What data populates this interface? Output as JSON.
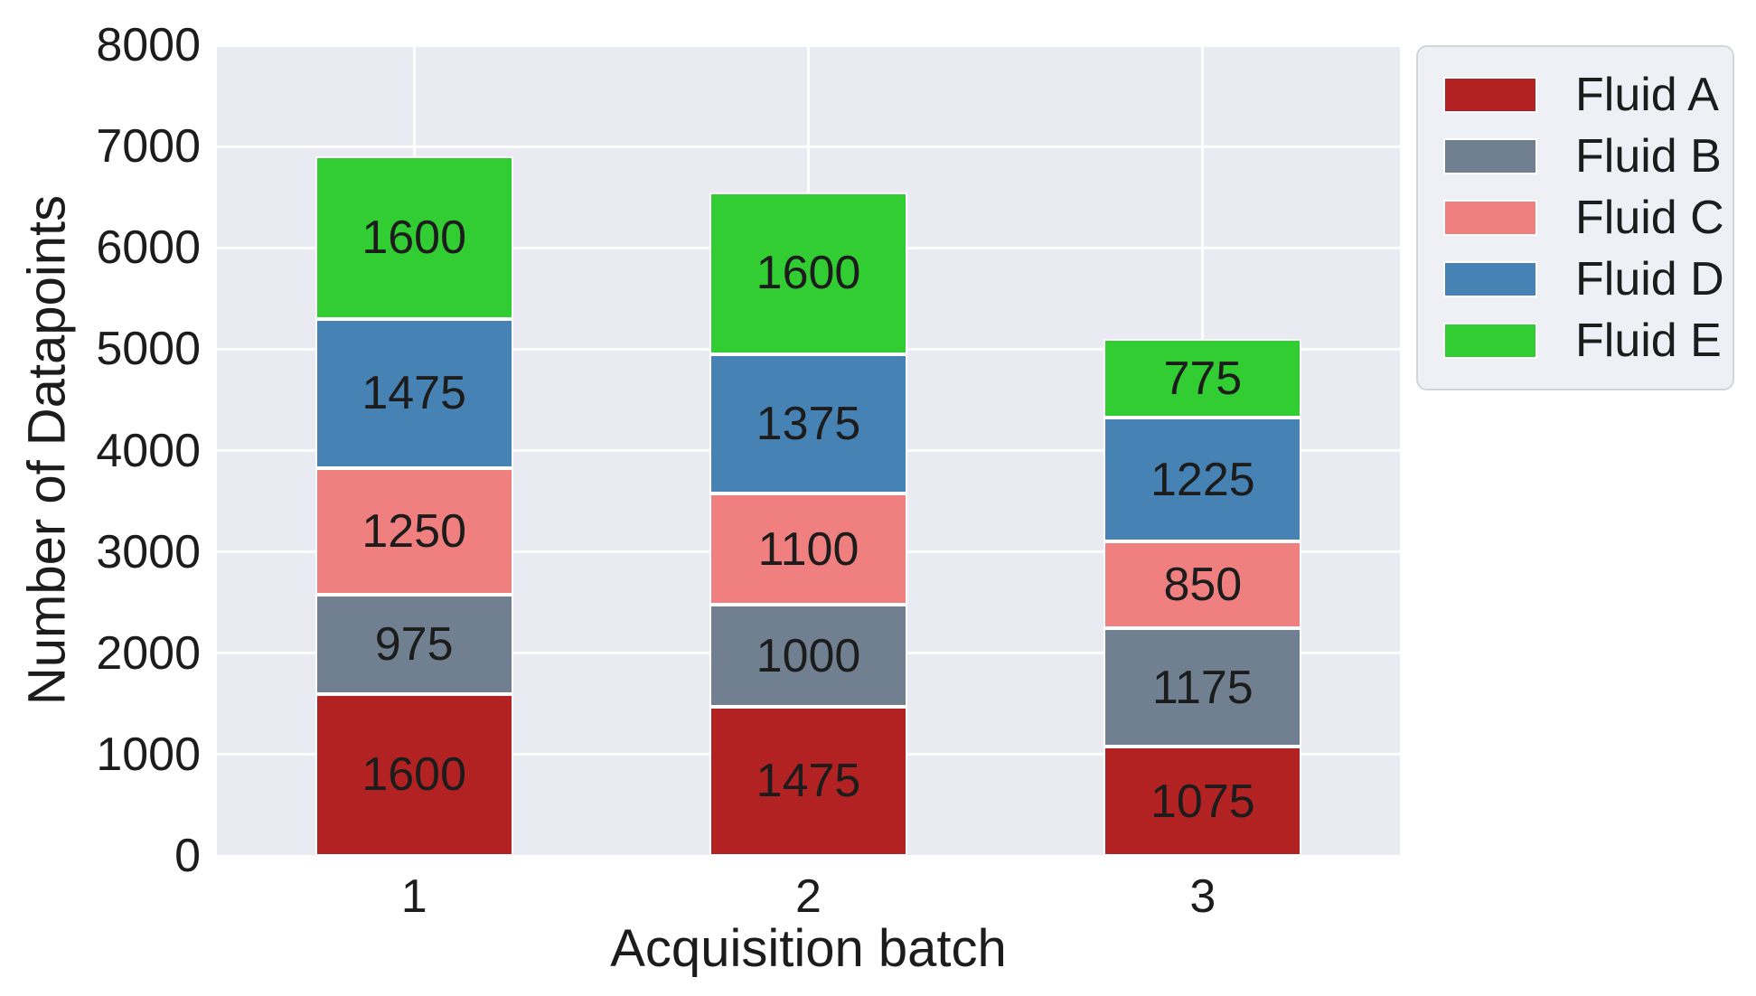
{
  "figure": {
    "background": "#ffffff",
    "plot_background": "#eaeaf2",
    "gridline_color": "#ffffff",
    "text_color": "#1c1c1c"
  },
  "chart_data": {
    "type": "bar",
    "stacked": true,
    "title": "",
    "xlabel": "Acquisition batch",
    "ylabel": "Number of Datapoints",
    "categories": [
      "1",
      "2",
      "3"
    ],
    "series": [
      {
        "name": "Fluid A",
        "color": "#b22222",
        "values": [
          1600,
          1475,
          1075
        ]
      },
      {
        "name": "Fluid B",
        "color": "#708090",
        "values": [
          975,
          1000,
          1175
        ]
      },
      {
        "name": "Fluid C",
        "color": "#f08080",
        "values": [
          1250,
          1100,
          850
        ]
      },
      {
        "name": "Fluid D",
        "color": "#4682b4",
        "values": [
          1475,
          1375,
          1225
        ]
      },
      {
        "name": "Fluid E",
        "color": "#32cd32",
        "values": [
          1600,
          1600,
          775
        ]
      }
    ],
    "bar_totals": [
      6900,
      6550,
      5100
    ],
    "bar_labels_visible": true,
    "ylim": [
      0,
      8000
    ],
    "yticks": [
      0,
      1000,
      2000,
      3000,
      4000,
      5000,
      6000,
      7000,
      8000
    ],
    "grid": true,
    "legend_position": "upper right outside"
  }
}
